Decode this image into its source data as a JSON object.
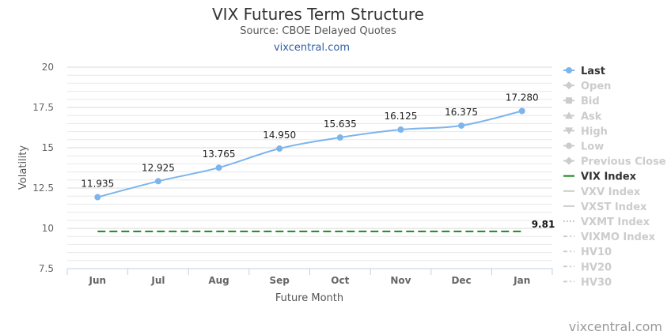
{
  "chart_data": {
    "type": "line",
    "title": "VIX Futures Term Structure",
    "subtitle": "Source: CBOE Delayed Quotes",
    "link_text": "vixcentral.com",
    "xlabel": "Future Month",
    "ylabel": "Volatility",
    "categories": [
      "Jun",
      "Jul",
      "Aug",
      "Sep",
      "Oct",
      "Nov",
      "Dec",
      "Jan"
    ],
    "ylim": [
      7.5,
      20
    ],
    "yticks": [
      "7.5",
      "10",
      "12.5",
      "15",
      "17.5",
      "20"
    ],
    "grid": true,
    "legend_position": "right",
    "series": [
      {
        "name": "Last",
        "values": [
          11.935,
          12.925,
          13.765,
          14.95,
          15.635,
          16.125,
          16.375,
          17.28
        ],
        "labels": [
          "11.935",
          "12.925",
          "13.765",
          "14.950",
          "15.635",
          "16.125",
          "16.375",
          "17.280"
        ],
        "color": "#7cb5ec"
      },
      {
        "name": "VIX Index",
        "values": [
          9.81,
          9.81,
          9.81,
          9.81,
          9.81,
          9.81,
          9.81,
          9.81
        ],
        "end_label": "9.81",
        "color": "#1a8a1a"
      }
    ],
    "legend": [
      {
        "name": "Last",
        "active": true,
        "symbol": "circle",
        "color": "#7cb5ec"
      },
      {
        "name": "Open",
        "active": false,
        "symbol": "diamond",
        "color": "#cccccc"
      },
      {
        "name": "Bid",
        "active": false,
        "symbol": "square",
        "color": "#cccccc"
      },
      {
        "name": "Ask",
        "active": false,
        "symbol": "triangle",
        "color": "#cccccc"
      },
      {
        "name": "High",
        "active": false,
        "symbol": "triangle-down",
        "color": "#cccccc"
      },
      {
        "name": "Low",
        "active": false,
        "symbol": "circle",
        "color": "#cccccc"
      },
      {
        "name": "Previous Close",
        "active": false,
        "symbol": "diamond",
        "color": "#cccccc"
      },
      {
        "name": "VIX Index",
        "active": true,
        "symbol": "line",
        "color": "#1a8a1a"
      },
      {
        "name": "VXV Index",
        "active": false,
        "symbol": "line",
        "color": "#cccccc"
      },
      {
        "name": "VXST Index",
        "active": false,
        "symbol": "line",
        "color": "#cccccc"
      },
      {
        "name": "VXMT Index",
        "active": false,
        "symbol": "dotted",
        "color": "#cccccc"
      },
      {
        "name": "VIXMO Index",
        "active": false,
        "symbol": "dashdot",
        "color": "#cccccc"
      },
      {
        "name": "HV10",
        "active": false,
        "symbol": "dashdot",
        "color": "#cccccc"
      },
      {
        "name": "HV20",
        "active": false,
        "symbol": "dashdot",
        "color": "#cccccc"
      },
      {
        "name": "HV30",
        "active": false,
        "symbol": "dashdot",
        "color": "#cccccc"
      }
    ],
    "credit": "vixcentral.com"
  }
}
